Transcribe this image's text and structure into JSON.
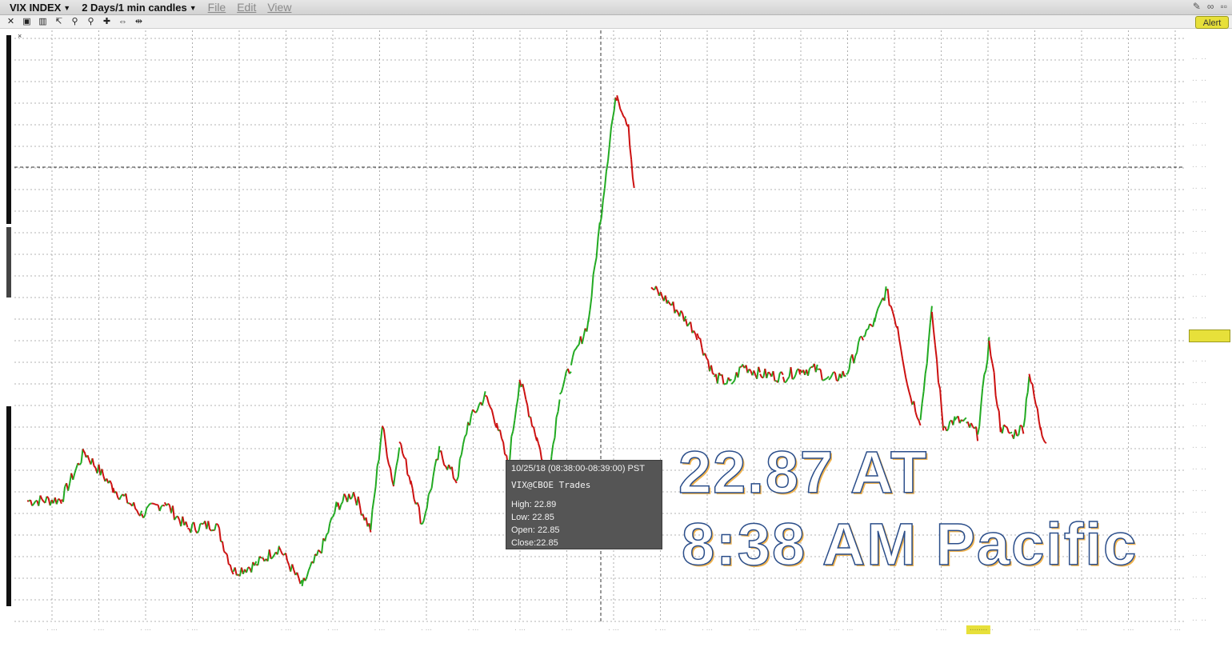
{
  "window": {
    "symbol": "VIX INDEX",
    "range": "2 Days/1 min candles",
    "menus": [
      "File",
      "Edit",
      "View"
    ]
  },
  "toolbar": {
    "alert_label": "Alert"
  },
  "overlay": {
    "line1": "22.87 AT",
    "line2": "8:38 AM Pacific"
  },
  "tooltip": {
    "header": "10/25/18 (08:38:00-08:39:00) PST",
    "source": "VIX@CBOE Trades",
    "rows": [
      "High:  22.89",
      "Low:   22.85",
      "Open: 22.85",
      "Close:22.85"
    ]
  },
  "colors": {
    "up": "#22aa22",
    "down": "#cc1111",
    "grid": "#9a9a9a",
    "highlight": "#e7e03a"
  },
  "chart_data": {
    "type": "line",
    "y_range": [
      21.6,
      25.7
    ],
    "close_path": [
      [
        0,
        22.44
      ],
      [
        0.03,
        22.45
      ],
      [
        0.05,
        22.78
      ],
      [
        0.075,
        22.53
      ],
      [
        0.1,
        22.35
      ],
      [
        0.12,
        22.43
      ],
      [
        0.14,
        22.25
      ],
      [
        0.165,
        22.28
      ],
      [
        0.18,
        21.95
      ],
      [
        0.2,
        22.0
      ],
      [
        0.22,
        22.12
      ],
      [
        0.24,
        21.85
      ],
      [
        0.26,
        22.16
      ],
      [
        0.27,
        22.4
      ],
      [
        0.285,
        22.5
      ],
      [
        0.3,
        22.24
      ],
      [
        0.31,
        22.96
      ],
      [
        0.32,
        22.55
      ],
      [
        0.325,
        22.85
      ],
      [
        0.335,
        22.58
      ],
      [
        0.345,
        22.28
      ],
      [
        0.36,
        22.78
      ],
      [
        0.375,
        22.58
      ],
      [
        0.385,
        22.98
      ],
      [
        0.4,
        23.17
      ],
      [
        0.41,
        22.98
      ],
      [
        0.42,
        22.68
      ],
      [
        0.43,
        23.28
      ],
      [
        0.445,
        22.88
      ],
      [
        0.455,
        22.58
      ],
      [
        0.465,
        23.18
      ],
      [
        0.475,
        23.38
      ],
      [
        0.49,
        23.68
      ],
      [
        0.5,
        24.35
      ],
      [
        0.51,
        25.03
      ],
      [
        0.515,
        25.25
      ],
      [
        0.525,
        25.05
      ],
      [
        0.53,
        24.58
      ],
      [
        0.535,
        24.3
      ],
      [
        0.545,
        23.92
      ],
      [
        0.56,
        23.82
      ],
      [
        0.575,
        23.7
      ],
      [
        0.585,
        23.6
      ],
      [
        0.6,
        23.3
      ],
      [
        0.615,
        23.25
      ],
      [
        0.625,
        23.38
      ],
      [
        0.64,
        23.32
      ],
      [
        0.66,
        23.3
      ],
      [
        0.675,
        23.35
      ],
      [
        0.69,
        23.35
      ],
      [
        0.7,
        23.28
      ],
      [
        0.715,
        23.32
      ],
      [
        0.73,
        23.58
      ],
      [
        0.74,
        23.68
      ],
      [
        0.75,
        23.9
      ],
      [
        0.76,
        23.65
      ],
      [
        0.77,
        23.2
      ],
      [
        0.78,
        23.0
      ],
      [
        0.79,
        23.75
      ],
      [
        0.8,
        22.95
      ],
      [
        0.81,
        23.0
      ],
      [
        0.82,
        22.98
      ],
      [
        0.83,
        22.9
      ],
      [
        0.84,
        23.55
      ],
      [
        0.85,
        22.95
      ],
      [
        0.86,
        22.9
      ],
      [
        0.87,
        22.95
      ],
      [
        0.875,
        23.32
      ],
      [
        0.885,
        22.95
      ],
      [
        0.89,
        22.85
      ]
    ]
  }
}
